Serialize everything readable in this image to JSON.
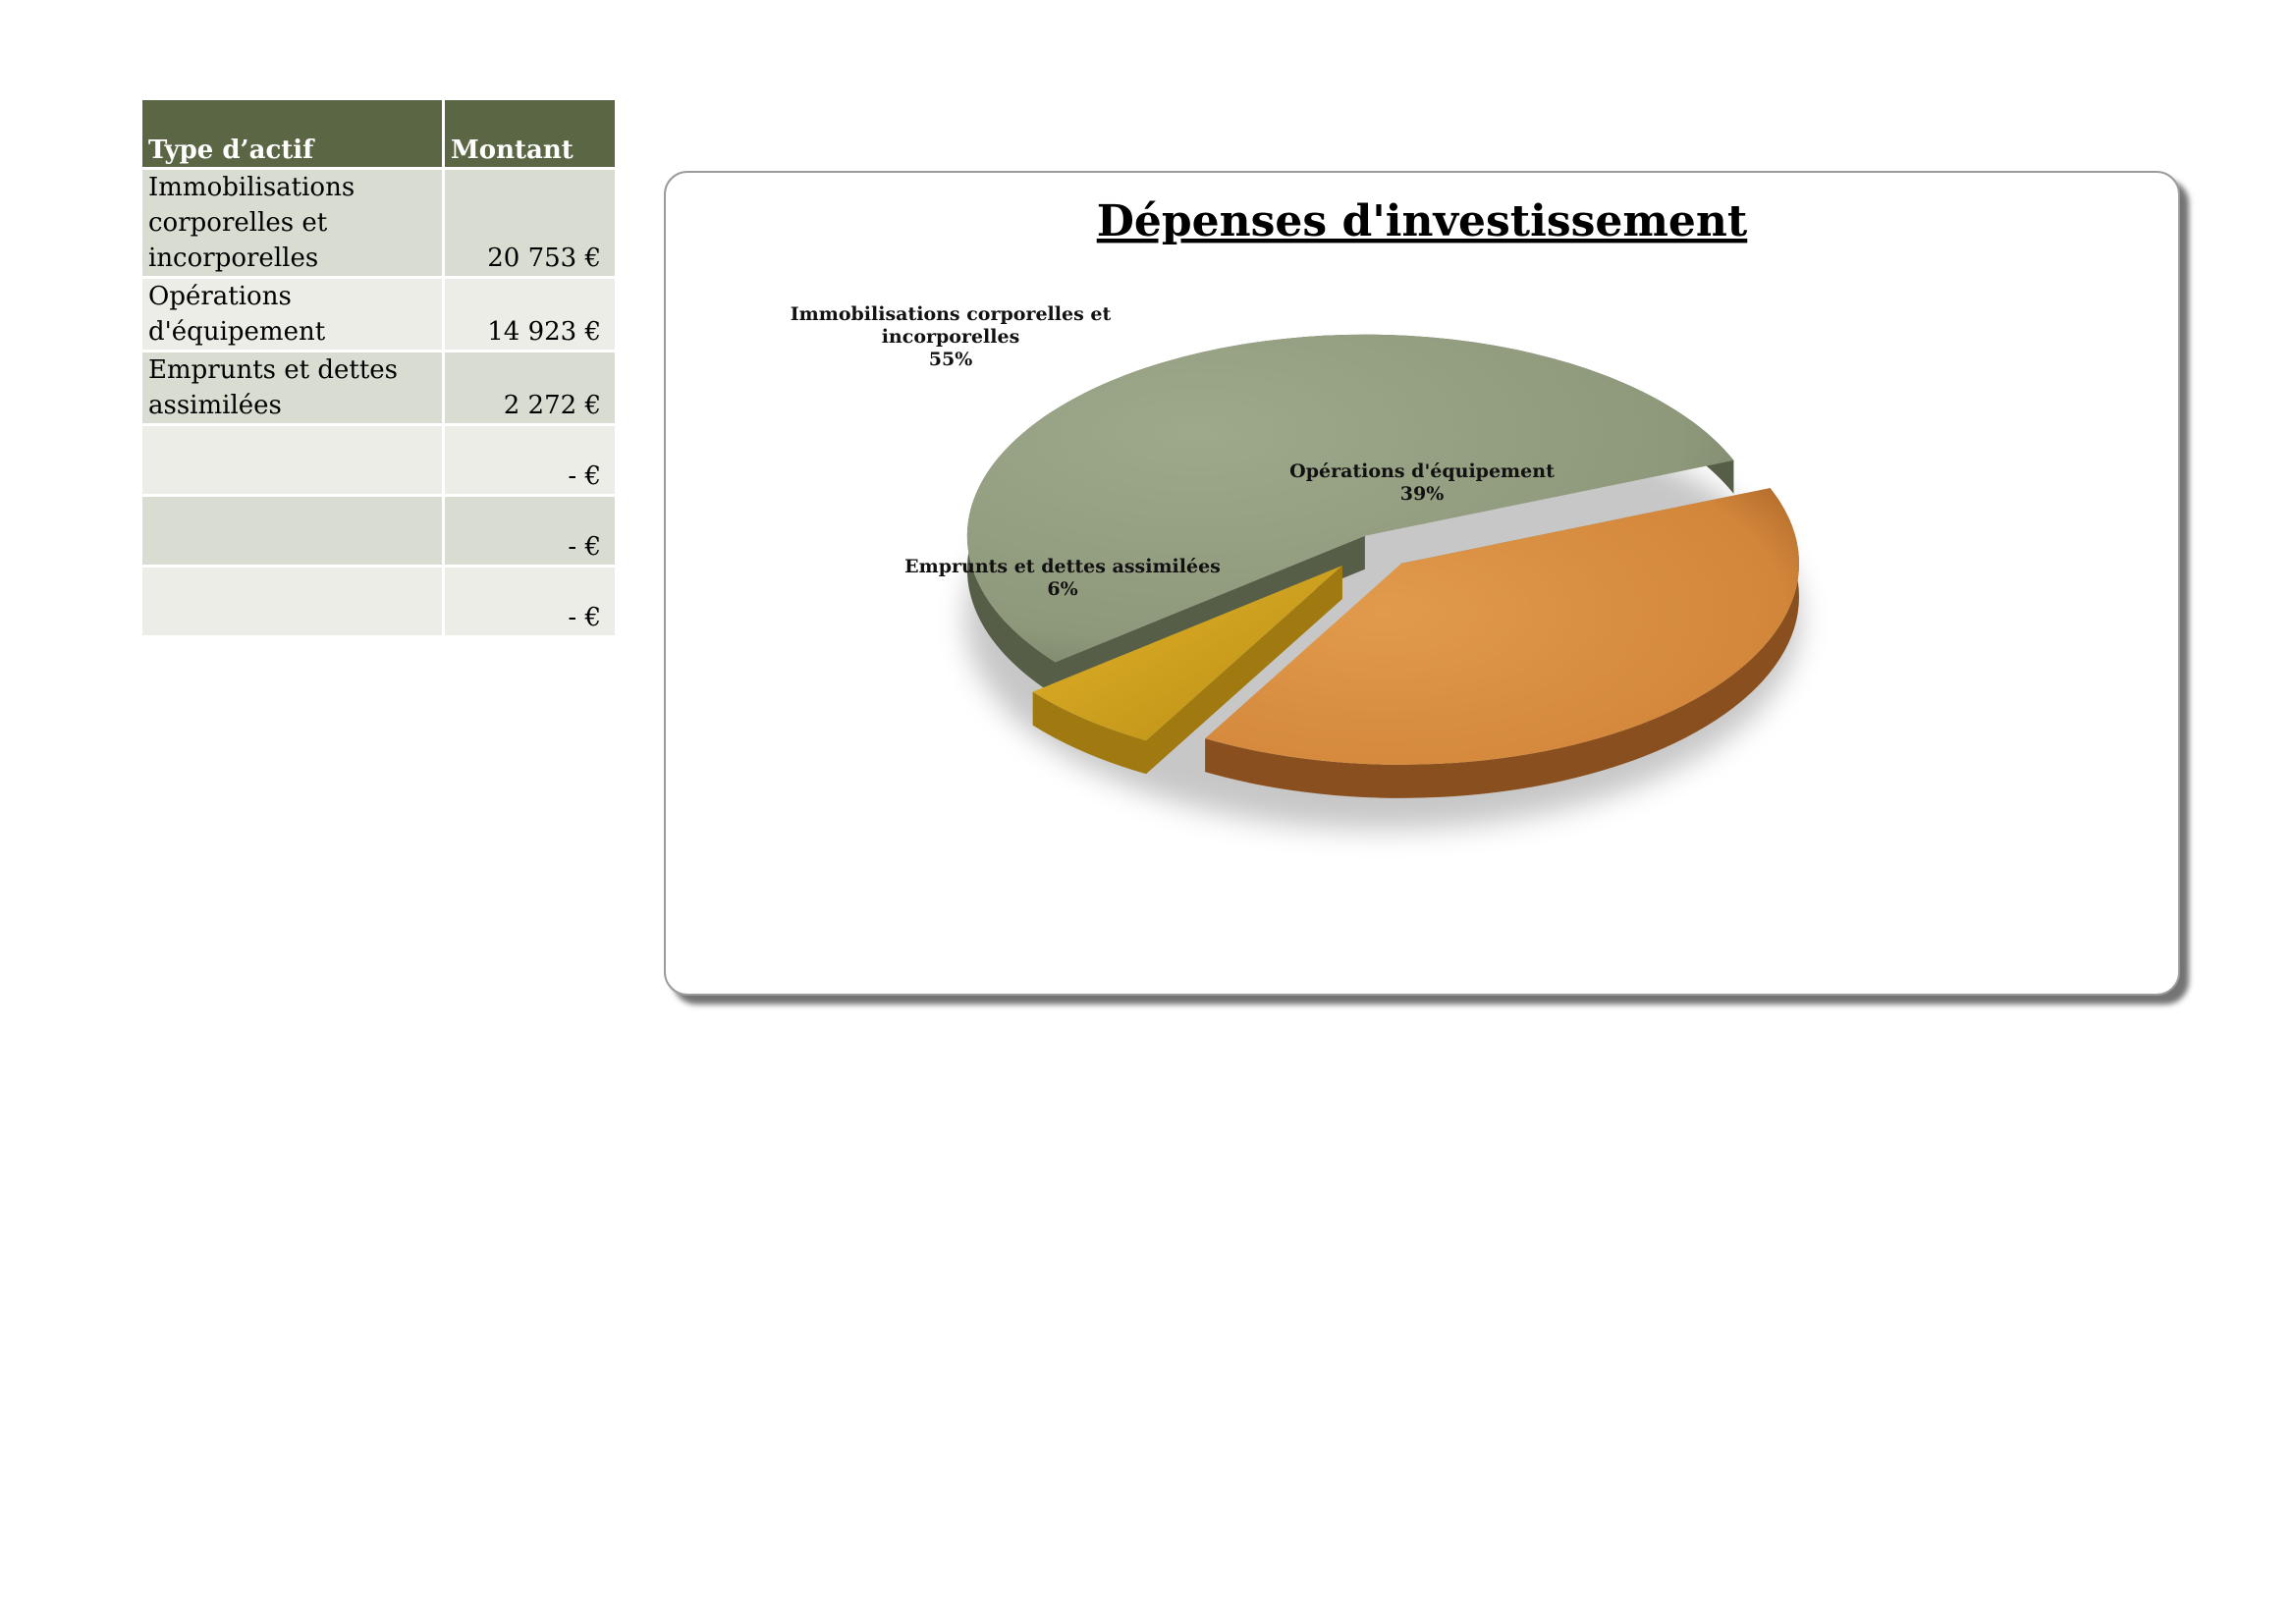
{
  "table": {
    "headers": [
      "Type d’actif",
      "Montant"
    ],
    "rows": [
      {
        "type_lines": [
          "Immobilisations",
          "corporelles et",
          "incorporelles"
        ],
        "amount": "20 753 €"
      },
      {
        "type_lines": [
          "Opérations",
          "d'équipement"
        ],
        "amount": "14 923 €"
      },
      {
        "type_lines": [
          "Emprunts et dettes",
          "assimilées"
        ],
        "amount": "2 272 €"
      },
      {
        "type_lines": [],
        "amount": "- €"
      },
      {
        "type_lines": [],
        "amount": "- €"
      },
      {
        "type_lines": [],
        "amount": "- €"
      }
    ]
  },
  "chart_data": {
    "type": "pie",
    "title": "Dépenses d'investissement",
    "categories": [
      "Immobilisations corporelles et incorporelles",
      "Opérations d'équipement",
      "Emprunts et dettes assimilées"
    ],
    "values": [
      20753,
      14923,
      2272
    ],
    "percent_labels": [
      "55%",
      "39%",
      "6%"
    ],
    "label_lines": [
      [
        "Immobilisations corporelles et",
        "incorporelles",
        "55%"
      ],
      [
        "Opérations d'équipement",
        "39%"
      ],
      [
        "Emprunts et dettes assimilées",
        "6%"
      ]
    ],
    "colors": [
      "#98a283",
      "#d98a3a",
      "#d8aa22"
    ],
    "exploded": true,
    "style": "3d"
  }
}
